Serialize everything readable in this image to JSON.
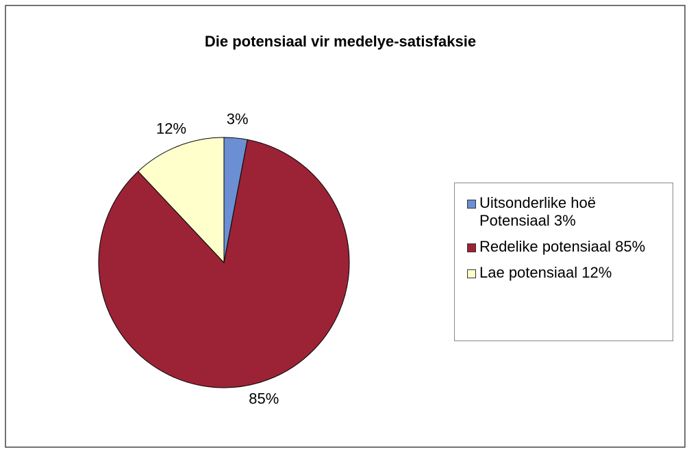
{
  "chart_data": {
    "type": "pie",
    "title": "Die potensiaal vir medelye-satisfaksie",
    "categories": [
      "Uitsonderlike hoë Potensiaal 3%",
      "Redelike potensiaal 85%",
      "Lae potensiaal 12%"
    ],
    "values": [
      3,
      85,
      12
    ],
    "value_labels": [
      "3%",
      "85%",
      "12%"
    ],
    "colors": [
      "#6b8fd2",
      "#9b2335",
      "#ffffcc"
    ],
    "legend": "right"
  }
}
